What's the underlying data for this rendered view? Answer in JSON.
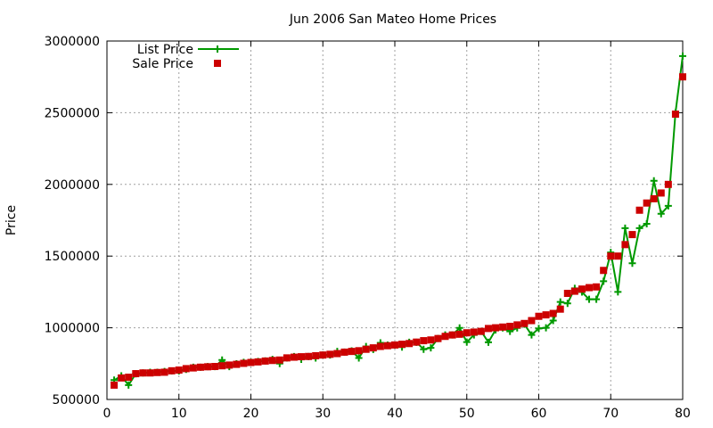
{
  "chart_data": {
    "type": "line",
    "title": "Jun 2006 San Mateo Home Prices",
    "xlabel": "",
    "ylabel": "Price",
    "xlim": [
      0,
      80
    ],
    "ylim": [
      500000,
      3000000
    ],
    "xticks": [
      0,
      10,
      20,
      30,
      40,
      50,
      60,
      70,
      80
    ],
    "yticks": [
      500000,
      1000000,
      1500000,
      2000000,
      2500000,
      3000000
    ],
    "grid": true,
    "legend_position": "top-left",
    "series": [
      {
        "name": "List Price",
        "style": "line-with-plus-markers",
        "color": "#009900",
        "x": [
          1,
          2,
          3,
          4,
          5,
          6,
          7,
          8,
          9,
          10,
          11,
          12,
          13,
          14,
          15,
          16,
          17,
          18,
          19,
          20,
          21,
          22,
          23,
          24,
          25,
          26,
          27,
          28,
          29,
          30,
          31,
          32,
          33,
          34,
          35,
          36,
          37,
          38,
          39,
          40,
          41,
          42,
          43,
          44,
          45,
          46,
          47,
          48,
          49,
          50,
          51,
          52,
          53,
          54,
          55,
          56,
          57,
          58,
          59,
          60,
          61,
          62,
          63,
          64,
          65,
          66,
          67,
          68,
          69,
          70,
          71,
          72,
          73,
          74,
          75,
          76,
          77,
          78,
          79,
          80
        ],
        "y": [
          635000,
          665000,
          600000,
          679000,
          685000,
          690000,
          690000,
          695000,
          699000,
          699000,
          710000,
          725000,
          725000,
          729000,
          729000,
          775000,
          729000,
          749000,
          759000,
          760000,
          765000,
          769000,
          779000,
          750000,
          789000,
          799000,
          780000,
          799000,
          789000,
          810000,
          810000,
          835000,
          830000,
          839000,
          789000,
          869000,
          849000,
          895000,
          879000,
          879000,
          865000,
          899000,
          899000,
          850000,
          860000,
          925000,
          950000,
          950000,
          999000,
          900000,
          950000,
          975000,
          899000,
          985000,
          999000,
          975000,
          999000,
          1025000,
          950000,
          995000,
          1000000,
          1050000,
          1180000,
          1170000,
          1275000,
          1249000,
          1199000,
          1199000,
          1325000,
          1525000,
          1250000,
          1695000,
          1450000,
          1695000,
          1725000,
          2025000,
          1795000,
          1850000,
          2500000,
          2895000
        ]
      },
      {
        "name": "Sale Price",
        "style": "square-markers",
        "color": "#cc0000",
        "x": [
          1,
          2,
          3,
          4,
          5,
          6,
          7,
          8,
          9,
          10,
          11,
          12,
          13,
          14,
          15,
          16,
          17,
          18,
          19,
          20,
          21,
          22,
          23,
          24,
          25,
          26,
          27,
          28,
          29,
          30,
          31,
          32,
          33,
          34,
          35,
          36,
          37,
          38,
          39,
          40,
          41,
          42,
          43,
          44,
          45,
          46,
          47,
          48,
          49,
          50,
          51,
          52,
          53,
          54,
          55,
          56,
          57,
          58,
          59,
          60,
          61,
          62,
          63,
          64,
          65,
          66,
          67,
          68,
          69,
          70,
          71,
          72,
          73,
          74,
          75,
          76,
          77,
          78,
          79,
          80
        ],
        "y": [
          600000,
          650000,
          655000,
          680000,
          685000,
          685000,
          688000,
          690000,
          700000,
          705000,
          715000,
          720000,
          725000,
          728000,
          730000,
          735000,
          740000,
          745000,
          752000,
          758000,
          762000,
          768000,
          772000,
          775000,
          790000,
          795000,
          798000,
          800000,
          805000,
          810000,
          815000,
          820000,
          830000,
          835000,
          840000,
          850000,
          860000,
          870000,
          875000,
          880000,
          885000,
          890000,
          900000,
          910000,
          915000,
          925000,
          940000,
          950000,
          955000,
          965000,
          970000,
          975000,
          995000,
          1000000,
          1005000,
          1010000,
          1020000,
          1030000,
          1050000,
          1080000,
          1090000,
          1100000,
          1130000,
          1240000,
          1255000,
          1270000,
          1280000,
          1285000,
          1400000,
          1500000,
          1500000,
          1580000,
          1650000,
          1820000,
          1870000,
          1900000,
          1940000,
          2000000,
          2490000,
          2750000
        ]
      }
    ]
  }
}
